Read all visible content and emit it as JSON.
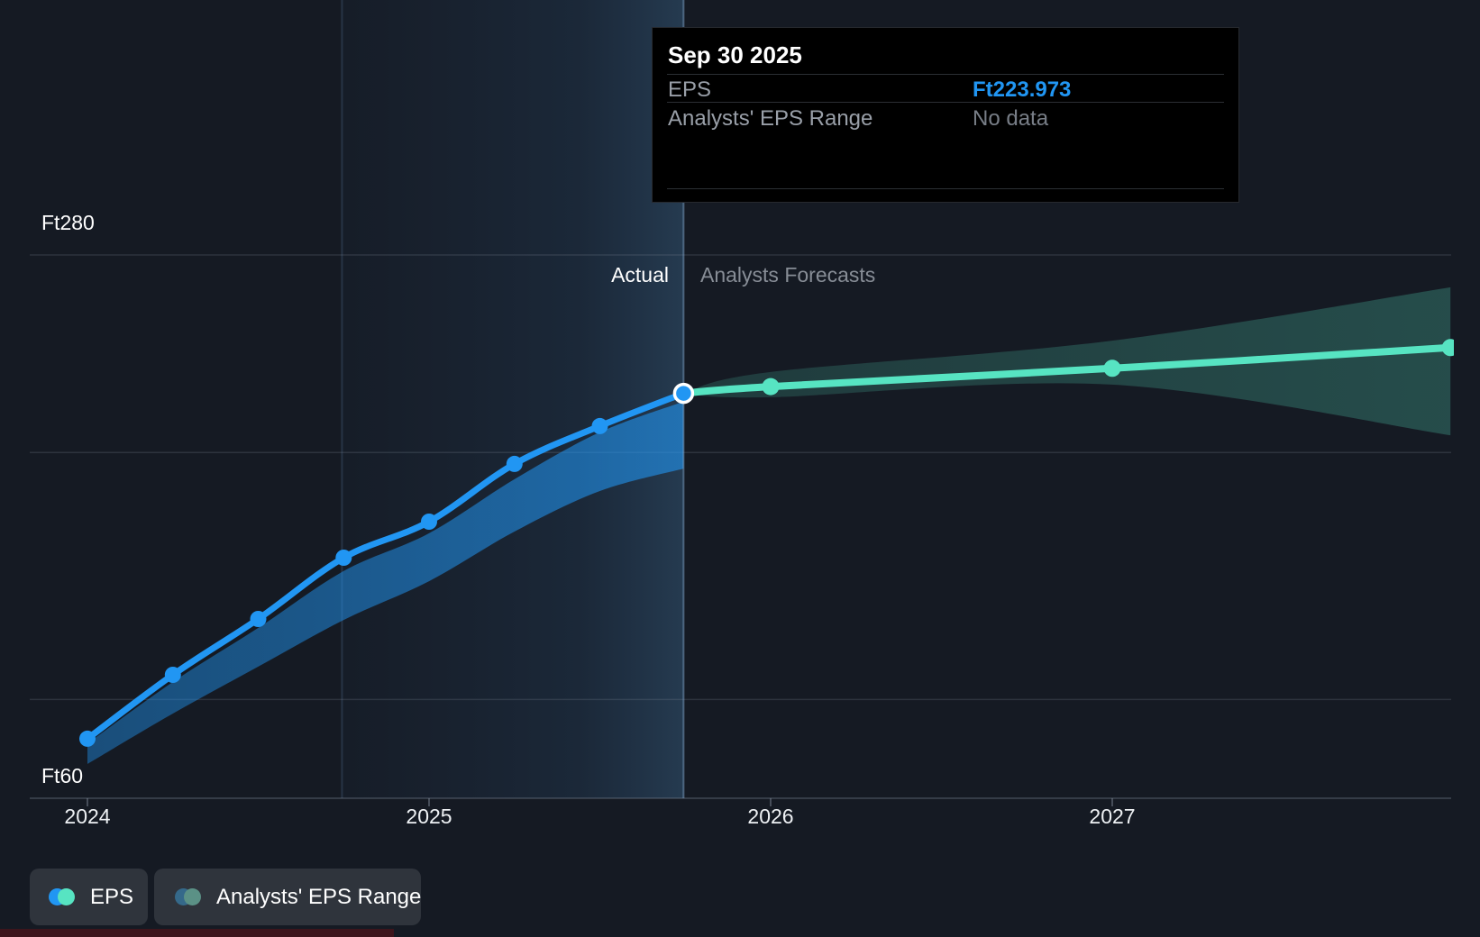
{
  "labels": {
    "y_max": "Ft280",
    "y_min": "Ft60",
    "actual": "Actual",
    "forecast": "Analysts Forecasts"
  },
  "tooltip": {
    "title": "Sep 30 2025",
    "rows": [
      {
        "label": "EPS",
        "value": "Ft223.973"
      },
      {
        "label": "Analysts' EPS Range",
        "value": "No data"
      }
    ]
  },
  "legend": {
    "eps": "EPS",
    "range": "Analysts' EPS Range"
  },
  "colors": {
    "eps_line": "#2196f3",
    "forecast_line": "#57e4c2",
    "value_blue": "#2196f3",
    "muted_blue_dot": "#35698a",
    "muted_teal_dot": "#5b9186",
    "background": "#151a23"
  },
  "chart_data": {
    "type": "line",
    "title": "EPS actual and analyst forecast over time",
    "x_ticks": [
      {
        "year": 2024,
        "label": "2024"
      },
      {
        "year": 2025,
        "label": "2025"
      },
      {
        "year": 2026,
        "label": "2026"
      },
      {
        "year": 2027,
        "label": "2027"
      }
    ],
    "y_axis": {
      "unit": "Ft",
      "min": 60,
      "max": 280,
      "gridline_values": [
        280,
        200,
        100,
        60
      ],
      "labeled_values": [
        280,
        60
      ]
    },
    "divider_x": 2025.745,
    "highlight_span": [
      2024.745,
      2025.745
    ],
    "series": [
      {
        "name": "EPS (actual)",
        "points": [
          [
            2024.0,
            84.1
          ],
          [
            2024.25,
            110.0
          ],
          [
            2024.5,
            132.6
          ],
          [
            2024.75,
            157.4
          ],
          [
            2025.0,
            172.0
          ],
          [
            2025.25,
            195.4
          ],
          [
            2025.5,
            210.7
          ],
          [
            2025.745,
            223.973
          ]
        ]
      },
      {
        "name": "EPS (analysts forecast)",
        "points": [
          [
            2025.745,
            223.973
          ],
          [
            2026.0,
            226.7
          ],
          [
            2027.0,
            234.1
          ],
          [
            2027.99,
            242.5
          ]
        ]
      }
    ],
    "bands": [
      {
        "name": "actual-range",
        "points_top": [
          [
            2024.0,
            82.2
          ],
          [
            2024.25,
            107.1
          ],
          [
            2024.5,
            129.0
          ],
          [
            2024.75,
            152.0
          ],
          [
            2025.0,
            167.3
          ],
          [
            2025.25,
            189.2
          ],
          [
            2025.5,
            208.2
          ],
          [
            2025.745,
            220.6
          ]
        ],
        "points_bottom": [
          [
            2024.0,
            73.9
          ],
          [
            2024.25,
            94.3
          ],
          [
            2024.5,
            113.3
          ],
          [
            2024.75,
            132.2
          ],
          [
            2025.0,
            147.9
          ],
          [
            2025.25,
            168.0
          ],
          [
            2025.5,
            184.4
          ],
          [
            2025.745,
            193.5
          ]
        ]
      },
      {
        "name": "forecast-range",
        "points_top": [
          [
            2025.745,
            224.0
          ],
          [
            2026.0,
            232.6
          ],
          [
            2027.0,
            245.3
          ],
          [
            2027.99,
            266.9
          ]
        ],
        "points_bottom": [
          [
            2025.745,
            224.0
          ],
          [
            2026.0,
            222.4
          ],
          [
            2027.0,
            227.5
          ],
          [
            2027.99,
            207.0
          ]
        ]
      }
    ]
  }
}
